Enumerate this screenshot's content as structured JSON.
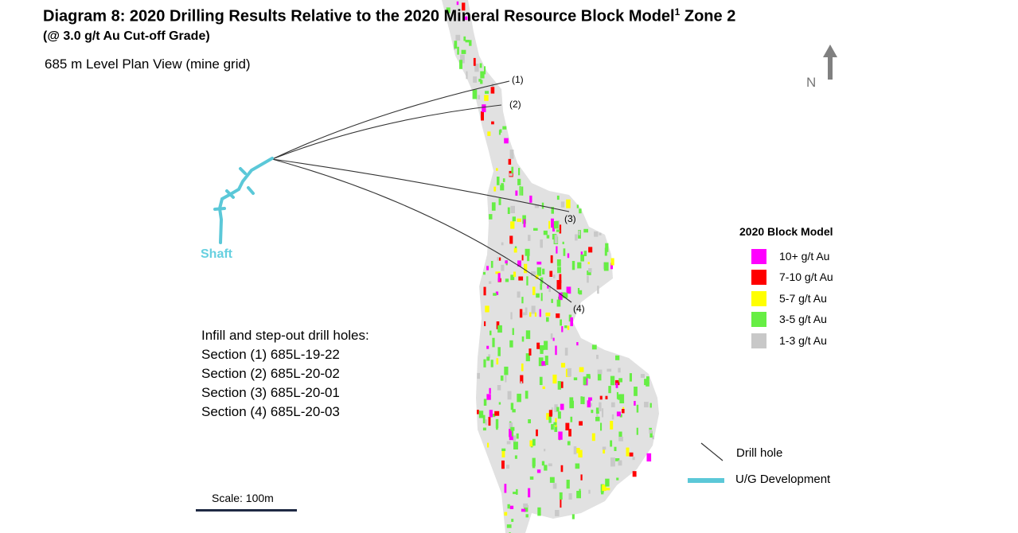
{
  "title": {
    "main": "Diagram 8: 2020 Drilling Results Relative to the 2020 Mineral Resource Block Model",
    "superscript": "1",
    "zone": "Zone 2",
    "subtitle": "(@ 3.0 g/t Au Cut-off Grade)"
  },
  "view_label": "685 m  Level Plan View (mine grid)",
  "north_label": "N",
  "shaft_label": "Shaft",
  "drill_hole_markers": [
    "(1)",
    "(2)",
    "(3)",
    "(4)"
  ],
  "holes_heading": "Infill and step-out drill holes:",
  "holes": [
    "Section (1) 685L-19-22",
    "Section (2) 685L-20-02",
    "Section (3) 685L-20-01",
    "Section (4) 685L-20-03"
  ],
  "legend": {
    "title": "2020 Block Model",
    "items": [
      {
        "label": "10+ g/t Au",
        "color": "#ff00ff"
      },
      {
        "label": "7-10 g/t Au",
        "color": "#ff0000"
      },
      {
        "label": "5-7 g/t Au",
        "color": "#ffff00"
      },
      {
        "label": "3-5 g/t Au",
        "color": "#66ee44"
      },
      {
        "label": "1-3 g/t Au",
        "color": "#c8c8c8"
      }
    ],
    "drill_hole_label": "Drill hole",
    "development_label": "U/G Development"
  },
  "scale_label": "Scale: 100m",
  "colors": {
    "block_grey": "#e0e0e0",
    "development": "#5bc8d8",
    "drill_line": "#333333",
    "north_arrow": "#808080",
    "scale_bar": "#1f2a44"
  }
}
